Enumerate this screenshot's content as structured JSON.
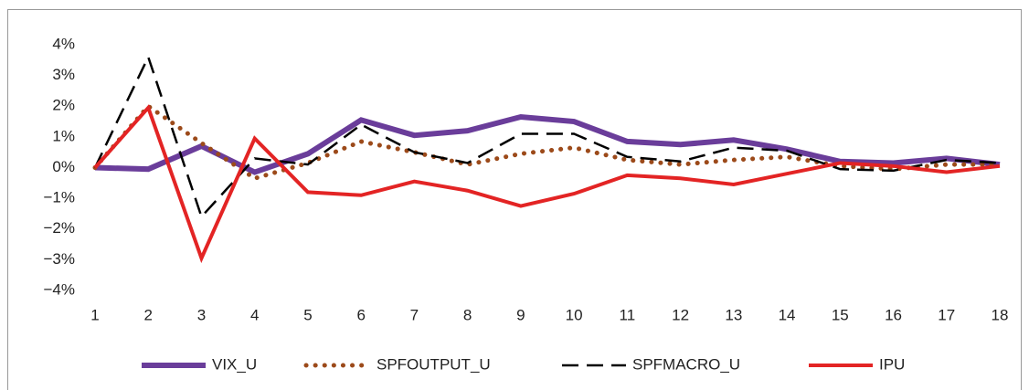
{
  "chart_data": {
    "type": "line",
    "x": [
      1,
      2,
      3,
      4,
      5,
      6,
      7,
      8,
      9,
      10,
      11,
      12,
      13,
      14,
      15,
      16,
      17,
      18
    ],
    "xlim": [
      1,
      18
    ],
    "xticks": [
      1,
      2,
      3,
      4,
      5,
      6,
      7,
      8,
      9,
      10,
      11,
      12,
      13,
      14,
      15,
      16,
      17,
      18
    ],
    "ylim": [
      -4,
      4
    ],
    "yticks": [
      {
        "value": -4,
        "label": "−4%"
      },
      {
        "value": -3,
        "label": "−3%"
      },
      {
        "value": -2,
        "label": "−2%"
      },
      {
        "value": -1,
        "label": "−1%"
      },
      {
        "value": 0,
        "label": "0%"
      },
      {
        "value": 1,
        "label": "1%"
      },
      {
        "value": 2,
        "label": "2%"
      },
      {
        "value": 3,
        "label": "3%"
      },
      {
        "value": 4,
        "label": "4%"
      }
    ],
    "grid": false,
    "legend": "bottom",
    "series": [
      {
        "name": "VIX_U",
        "color": "#6a3d9a",
        "style": "solid",
        "values": [
          0,
          -0.05,
          0.7,
          -0.15,
          0.45,
          1.55,
          1.05,
          1.2,
          1.65,
          1.5,
          0.85,
          0.75,
          0.9,
          0.6,
          0.2,
          0.15,
          0.3,
          0.1
        ]
      },
      {
        "name": "SPFOUTPUT_U",
        "color": "#9c4a1a",
        "style": "dotted",
        "values": [
          0,
          2.0,
          0.8,
          -0.35,
          0.15,
          0.85,
          0.5,
          0.1,
          0.45,
          0.65,
          0.25,
          0.1,
          0.25,
          0.35,
          0.05,
          -0.05,
          0.1,
          0.1
        ]
      },
      {
        "name": "SPFMACRO_U",
        "color": "#000000",
        "style": "dashed",
        "values": [
          0,
          3.6,
          -1.6,
          0.3,
          0.1,
          1.4,
          0.5,
          0.15,
          1.1,
          1.1,
          0.35,
          0.2,
          0.65,
          0.55,
          -0.05,
          -0.1,
          0.25,
          0.15
        ]
      },
      {
        "name": "IPU",
        "color": "#e32424",
        "style": "solid",
        "values": [
          0,
          1.95,
          -2.95,
          0.95,
          -0.8,
          -0.9,
          -0.45,
          -0.75,
          -1.25,
          -0.85,
          -0.25,
          -0.35,
          -0.55,
          -0.2,
          0.15,
          0.05,
          -0.15,
          0.05
        ]
      }
    ]
  }
}
